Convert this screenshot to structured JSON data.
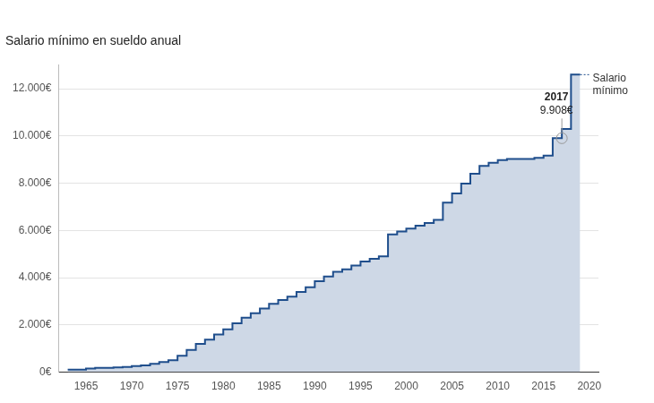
{
  "chart_data": {
    "type": "line",
    "title": "Salario mínimo en sueldo anual",
    "x": [
      1963,
      1964,
      1965,
      1966,
      1967,
      1968,
      1969,
      1970,
      1971,
      1972,
      1973,
      1974,
      1975,
      1976,
      1977,
      1978,
      1979,
      1980,
      1981,
      1982,
      1983,
      1984,
      1985,
      1986,
      1987,
      1988,
      1989,
      1990,
      1991,
      1992,
      1993,
      1994,
      1995,
      1996,
      1997,
      1998,
      1999,
      2000,
      2001,
      2002,
      2003,
      2004,
      2005,
      2006,
      2007,
      2008,
      2009,
      2010,
      2011,
      2012,
      2013,
      2014,
      2015,
      2016,
      2017,
      2018,
      2019
    ],
    "series": [
      {
        "name": "Salario mínimo",
        "color": "#1f4e8c",
        "values": [
          108,
          108,
          108,
          151,
          187,
          187,
          205,
          221,
          259,
          292,
          351,
          426,
          505,
          700,
          944,
          1200,
          1380,
          1600,
          1810,
          2070,
          2310,
          2500,
          2700,
          2900,
          3060,
          3200,
          3400,
          3600,
          3850,
          4050,
          4250,
          4360,
          4520,
          4690,
          4800,
          4910,
          5830,
          5960,
          6080,
          6200,
          6320,
          6450,
          7180,
          7570,
          7990,
          8400,
          8740,
          8870,
          8980,
          9030,
          9030,
          9030,
          9080,
          9170,
          9908,
          10300,
          12600
        ]
      }
    ],
    "xlim": [
      1962,
      2021
    ],
    "xticks": [
      1965,
      1970,
      1975,
      1980,
      1985,
      1990,
      1995,
      2000,
      2005,
      2010,
      2015,
      2020
    ],
    "ylim": [
      0,
      13000
    ],
    "yticks": [
      {
        "value": 0,
        "label": "0€"
      },
      {
        "value": 2000,
        "label": "2.000€"
      },
      {
        "value": 4000,
        "label": "4.000€"
      },
      {
        "value": 6000,
        "label": "6.000€"
      },
      {
        "value": 8000,
        "label": "8.000€"
      },
      {
        "value": 10000,
        "label": "10.000€"
      },
      {
        "value": 12000,
        "label": "12.000€"
      }
    ],
    "grid": true,
    "line_style": "stepped",
    "annotations": [
      {
        "x": 2017,
        "y": 9908,
        "title": "2017",
        "label": "9.908€"
      }
    ]
  }
}
